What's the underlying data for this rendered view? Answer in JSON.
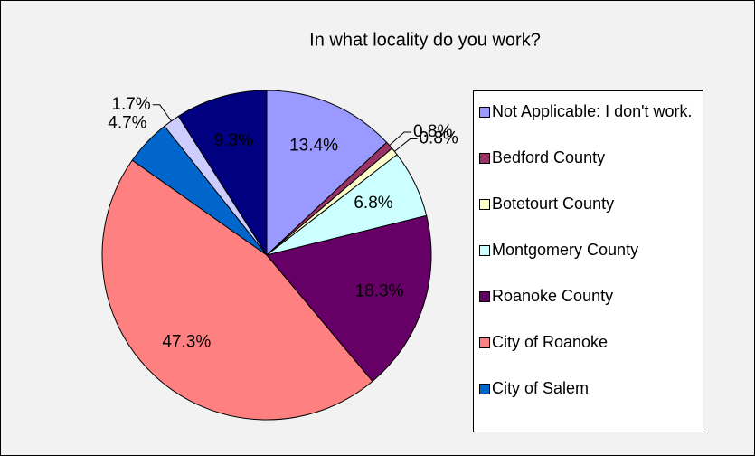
{
  "chart_data": {
    "type": "pie",
    "title": "In what locality do you work?",
    "categories": [
      "Not Applicable: I don't work.",
      "Bedford County",
      "Botetourt County",
      "Montgomery County",
      "Roanoke County",
      "City of Roanoke",
      "City of Salem",
      null,
      null
    ],
    "values": [
      13.4,
      0.8,
      0.8,
      6.8,
      18.3,
      47.3,
      4.7,
      1.7,
      9.3
    ],
    "value_labels": [
      "13.4%",
      "0.8%",
      "0.8%",
      "6.8%",
      "18.3%",
      "47.3%",
      "4.7%",
      "1.7%",
      "9.3%"
    ],
    "colors": [
      "#9999ff",
      "#993366",
      "#ffffcc",
      "#ccffff",
      "#660066",
      "#ff8080",
      "#0066cc",
      "#ccccff",
      "#000080"
    ],
    "legend": "right"
  }
}
